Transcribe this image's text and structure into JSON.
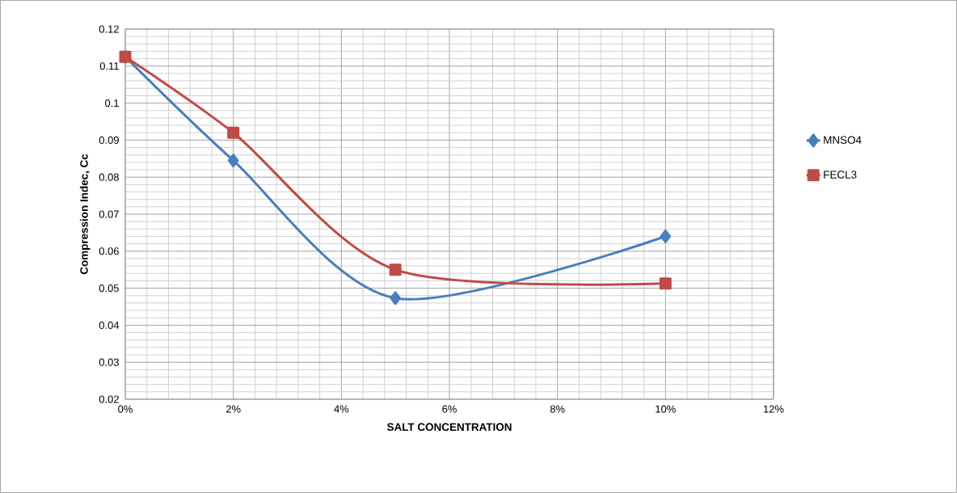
{
  "chart_data": {
    "type": "line",
    "xlabel": "SALT CONCENTRATION",
    "ylabel": "Compression Indec, Cc",
    "x": [
      0,
      0.02,
      0.05,
      0.1
    ],
    "series": [
      {
        "name": "MNSO4",
        "color": "#4a7ebb",
        "marker": "diamond",
        "values": [
          0.1125,
          0.0845,
          0.0473,
          0.064
        ]
      },
      {
        "name": "FECL3",
        "color": "#be4b48",
        "marker": "square",
        "values": [
          0.1125,
          0.092,
          0.055,
          0.0513
        ]
      }
    ],
    "xlim": [
      0,
      0.12
    ],
    "xticks": [
      {
        "value": 0,
        "label": "0%"
      },
      {
        "value": 0.02,
        "label": "2%"
      },
      {
        "value": 0.04,
        "label": "4%"
      },
      {
        "value": 0.06,
        "label": "6%"
      },
      {
        "value": 0.08,
        "label": "8%"
      },
      {
        "value": 0.1,
        "label": "10%"
      },
      {
        "value": 0.12,
        "label": "12%"
      }
    ],
    "ylim": [
      0.02,
      0.12
    ],
    "yticks": [
      0.02,
      0.03,
      0.04,
      0.05,
      0.06,
      0.07,
      0.08,
      0.09,
      0.1,
      0.11,
      0.12
    ],
    "grid": true,
    "legend": "right",
    "line_style": "solid"
  }
}
